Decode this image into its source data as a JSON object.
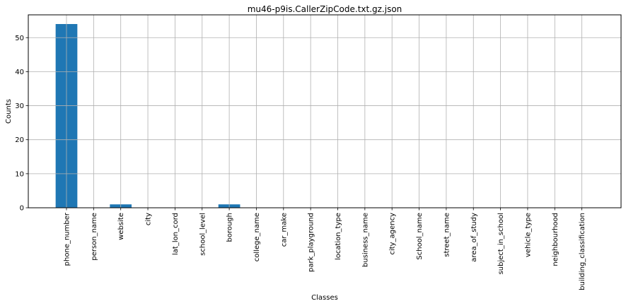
{
  "chart_data": {
    "type": "bar",
    "title": "mu46-p9is.CallerZipCode.txt.gz.json",
    "xlabel": "Classes",
    "ylabel": "Counts",
    "categories": [
      "phone_number",
      "person_name",
      "website",
      "city",
      "lat_lon_cord",
      "school_level",
      "borough",
      "college_name",
      "car_make",
      "park_playground",
      "location_type",
      "business_name",
      "city_agency",
      "School_name",
      "street_name",
      "area_of_study",
      "subject_in_school",
      "vehicle_type",
      "neighbourhood",
      "building_classification"
    ],
    "values": [
      54,
      0,
      1,
      0,
      0,
      0,
      1,
      0,
      0,
      0,
      0,
      0,
      0,
      0,
      0,
      0,
      0,
      0,
      0,
      0
    ],
    "ylim": [
      0,
      56.7
    ],
    "yticks": [
      0,
      10,
      20,
      30,
      40,
      50
    ],
    "grid": true,
    "bar_color": "#1f77b4",
    "grid_color": "#b0b0b0"
  }
}
